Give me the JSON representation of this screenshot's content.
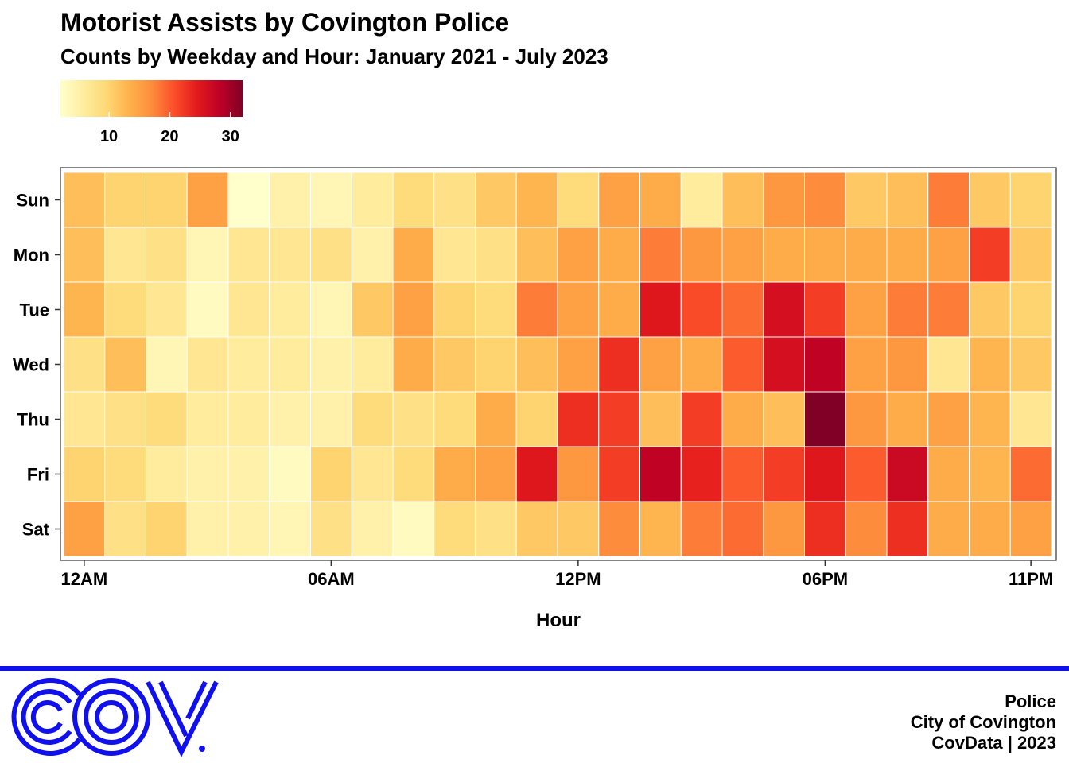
{
  "chart_data": {
    "type": "heatmap",
    "title": "Motorist Assists by Covington Police",
    "subtitle": "Counts by Weekday and Hour: January 2021 - July 2023",
    "xlabel": "Hour",
    "ylabel": "",
    "x_categories": [
      "12AM",
      "01AM",
      "02AM",
      "03AM",
      "04AM",
      "05AM",
      "06AM",
      "07AM",
      "08AM",
      "09AM",
      "10AM",
      "11AM",
      "12PM",
      "01PM",
      "02PM",
      "03PM",
      "04PM",
      "05PM",
      "06PM",
      "07PM",
      "08PM",
      "09PM",
      "10PM",
      "11PM"
    ],
    "x_tick_labels": [
      "12AM",
      "06AM",
      "12PM",
      "06PM",
      "11PM"
    ],
    "y_categories": [
      "Sun",
      "Mon",
      "Tue",
      "Wed",
      "Thu",
      "Fri",
      "Sat"
    ],
    "values": [
      [
        12,
        10,
        10,
        15,
        2,
        5,
        4,
        6,
        9,
        8,
        11,
        13,
        9,
        15,
        14,
        6,
        12,
        16,
        17,
        11,
        12,
        18,
        11,
        10
      ],
      [
        12,
        7,
        8,
        4,
        7,
        7,
        8,
        5,
        14,
        7,
        8,
        12,
        15,
        14,
        18,
        16,
        15,
        14,
        14,
        14,
        14,
        15,
        22,
        11
      ],
      [
        13,
        9,
        7,
        3,
        7,
        6,
        4,
        11,
        15,
        10,
        9,
        18,
        15,
        14,
        25,
        21,
        19,
        26,
        22,
        15,
        18,
        18,
        11,
        10
      ],
      [
        8,
        12,
        4,
        7,
        6,
        6,
        5,
        6,
        14,
        11,
        10,
        12,
        15,
        23,
        15,
        14,
        20,
        26,
        28,
        15,
        16,
        7,
        13,
        11
      ],
      [
        7,
        8,
        9,
        6,
        6,
        5,
        5,
        9,
        8,
        9,
        14,
        10,
        23,
        22,
        12,
        22,
        14,
        12,
        32,
        16,
        14,
        15,
        13,
        7
      ],
      [
        10,
        9,
        6,
        5,
        5,
        3,
        10,
        7,
        9,
        14,
        15,
        25,
        16,
        22,
        28,
        24,
        20,
        22,
        25,
        20,
        27,
        14,
        13,
        19
      ],
      [
        15,
        8,
        10,
        5,
        5,
        4,
        8,
        5,
        3,
        9,
        8,
        11,
        11,
        17,
        13,
        18,
        19,
        16,
        23,
        17,
        23,
        14,
        14,
        15
      ]
    ],
    "color_scale": {
      "low": "#ffffcc",
      "high": "#800026",
      "palette": [
        "#ffffcc",
        "#ffeda0",
        "#fed976",
        "#feb24c",
        "#fd8d3c",
        "#fc4e2a",
        "#e31a1c",
        "#bd0026",
        "#800026"
      ],
      "domain": [
        2,
        32
      ]
    },
    "legend": {
      "position": "top-left",
      "ticks": [
        "10",
        "20",
        "30"
      ]
    },
    "grid": false
  },
  "footer": {
    "line1": "Police",
    "line2": "City of Covington",
    "line3": "CovData | 2023",
    "logo_text": "COV",
    "accent_color": "#1010ee"
  }
}
